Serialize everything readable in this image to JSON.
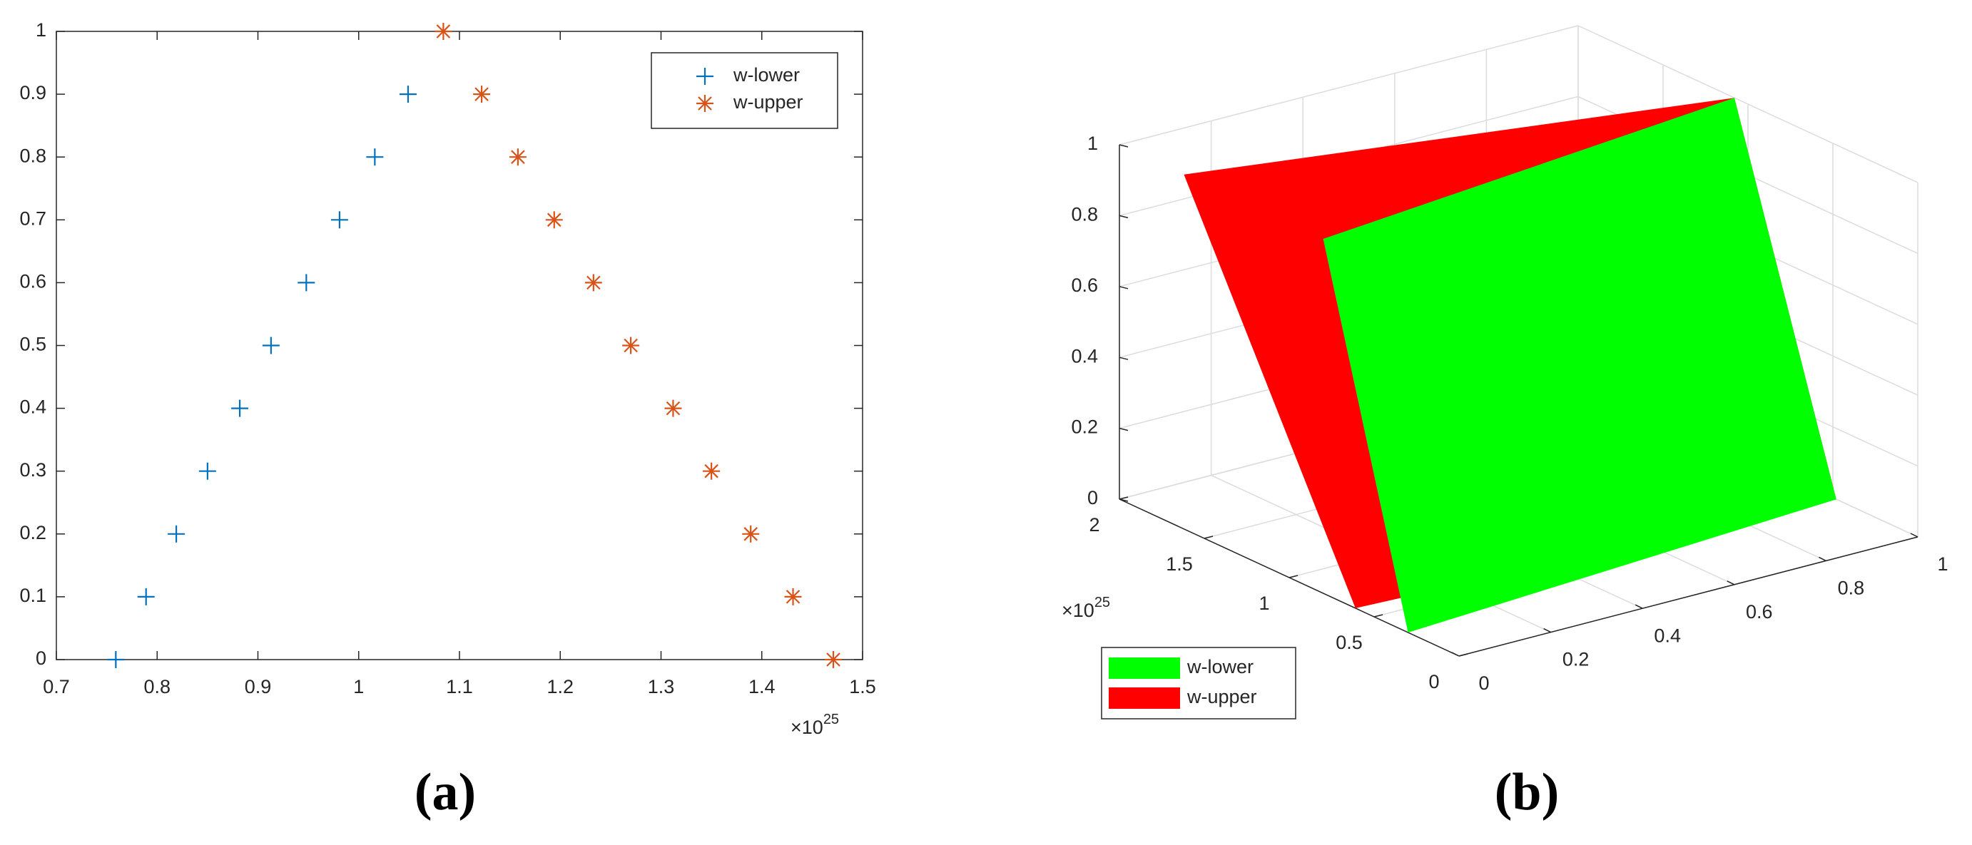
{
  "chart_data": [
    {
      "type": "scatter",
      "caption": "(a)",
      "x_multiplier": {
        "base": "×10",
        "exponent": "25"
      },
      "xlim": [
        0.7,
        1.5
      ],
      "xticks": [
        0.7,
        0.8,
        0.9,
        1,
        1.1,
        1.2,
        1.3,
        1.4,
        1.5
      ],
      "ylim": [
        0,
        1
      ],
      "yticks": [
        0,
        0.1,
        0.2,
        0.3,
        0.4,
        0.5,
        0.6,
        0.7,
        0.8,
        0.9,
        1
      ],
      "legend": "top-right",
      "series": [
        {
          "name": "w-lower",
          "color": "#0072bd",
          "marker": "plus",
          "x": [
            0.759,
            0.789,
            0.819,
            0.85,
            0.882,
            0.913,
            0.948,
            0.981,
            1.016,
            1.049
          ],
          "values": [
            0,
            0.1,
            0.2,
            0.3,
            0.4,
            0.5,
            0.6,
            0.7,
            0.8,
            0.9
          ]
        },
        {
          "name": "w-upper",
          "color": "#d95319",
          "marker": "star",
          "x": [
            1.084,
            1.122,
            1.158,
            1.194,
            1.233,
            1.27,
            1.312,
            1.35,
            1.389,
            1.431,
            1.471
          ],
          "values": [
            1,
            0.9,
            0.8,
            0.7,
            0.6,
            0.5,
            0.4,
            0.3,
            0.2,
            0.1,
            0
          ]
        }
      ]
    },
    {
      "type": "surface3d",
      "caption": "(b)",
      "y_multiplier": {
        "base": "×10",
        "exponent": "25"
      },
      "xlim": [
        0,
        1
      ],
      "xticks": [
        0,
        0.2,
        0.4,
        0.6,
        0.8,
        1
      ],
      "ylim": [
        0,
        2
      ],
      "yticks": [
        0,
        0.5,
        1,
        1.5,
        2
      ],
      "zlim": [
        0,
        1
      ],
      "zticks": [
        0,
        0.2,
        0.4,
        0.6,
        0.8,
        1
      ],
      "grid": true,
      "legend": "bottom-left",
      "series": [
        {
          "name": "w-upper",
          "color": "#ff0000",
          "vertices": [
            [
              0,
              1.62,
              1
            ],
            [
              1,
              1.08,
              1
            ],
            [
              1,
              0.48,
              0
            ],
            [
              0,
              0.61,
              0
            ]
          ]
        },
        {
          "name": "w-lower",
          "color": "#00ff00",
          "vertices": [
            [
              0,
              0.8,
              1
            ],
            [
              1,
              1.08,
              1
            ],
            [
              1,
              0.48,
              0
            ],
            [
              0,
              0.3,
              0
            ]
          ]
        }
      ]
    }
  ]
}
